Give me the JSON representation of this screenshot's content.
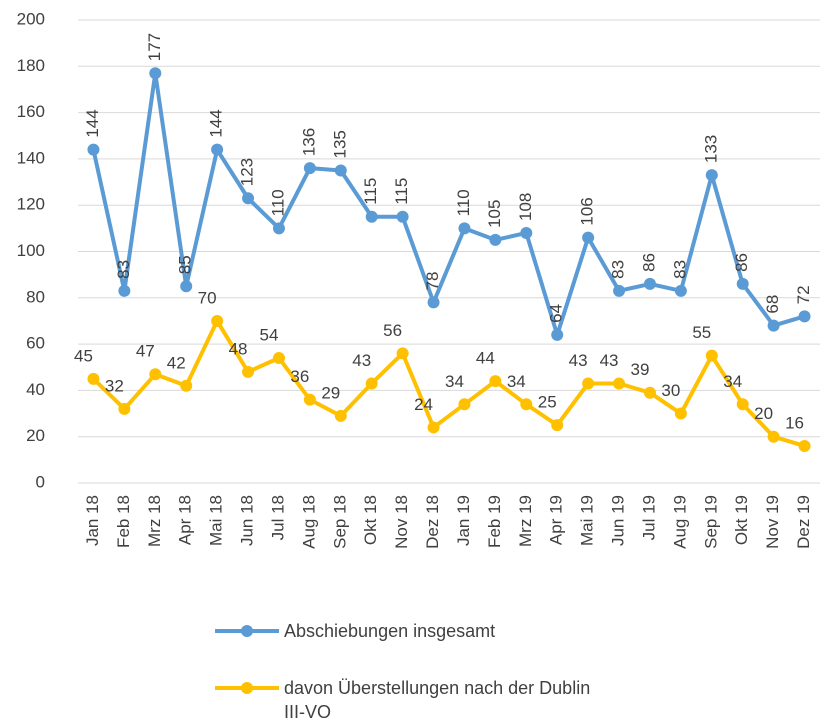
{
  "chart_data": {
    "type": "line",
    "categories": [
      "Jan 18",
      "Feb 18",
      "Mrz 18",
      "Apr 18",
      "Mai 18",
      "Jun 18",
      "Jul 18",
      "Aug 18",
      "Sep 18",
      "Okt 18",
      "Nov 18",
      "Dez 18",
      "Jan 19",
      "Feb 19",
      "Mrz 19",
      "Apr 19",
      "Mai 19",
      "Jun 19",
      "Jul 19",
      "Aug 19",
      "Sep 19",
      "Okt 19",
      "Nov 19",
      "Dez 19"
    ],
    "series": [
      {
        "name": "Abschiebungen insgesamt",
        "color": "#5b9bd5",
        "values": [
          144,
          83,
          177,
          85,
          144,
          123,
          110,
          136,
          135,
          115,
          115,
          78,
          110,
          105,
          108,
          64,
          106,
          83,
          86,
          83,
          133,
          86,
          68,
          72
        ]
      },
      {
        "name": "davon Überstellungen nach der Dublin III-VO",
        "color": "#ffc000",
        "values": [
          45,
          32,
          47,
          42,
          70,
          48,
          54,
          36,
          29,
          43,
          56,
          24,
          34,
          44,
          34,
          25,
          43,
          43,
          39,
          30,
          55,
          34,
          20,
          16
        ]
      }
    ],
    "ylim": [
      0,
      200
    ],
    "yticks": [
      0,
      20,
      40,
      60,
      80,
      100,
      120,
      140,
      160,
      180,
      200
    ],
    "grid": true,
    "legend": "bottom"
  }
}
